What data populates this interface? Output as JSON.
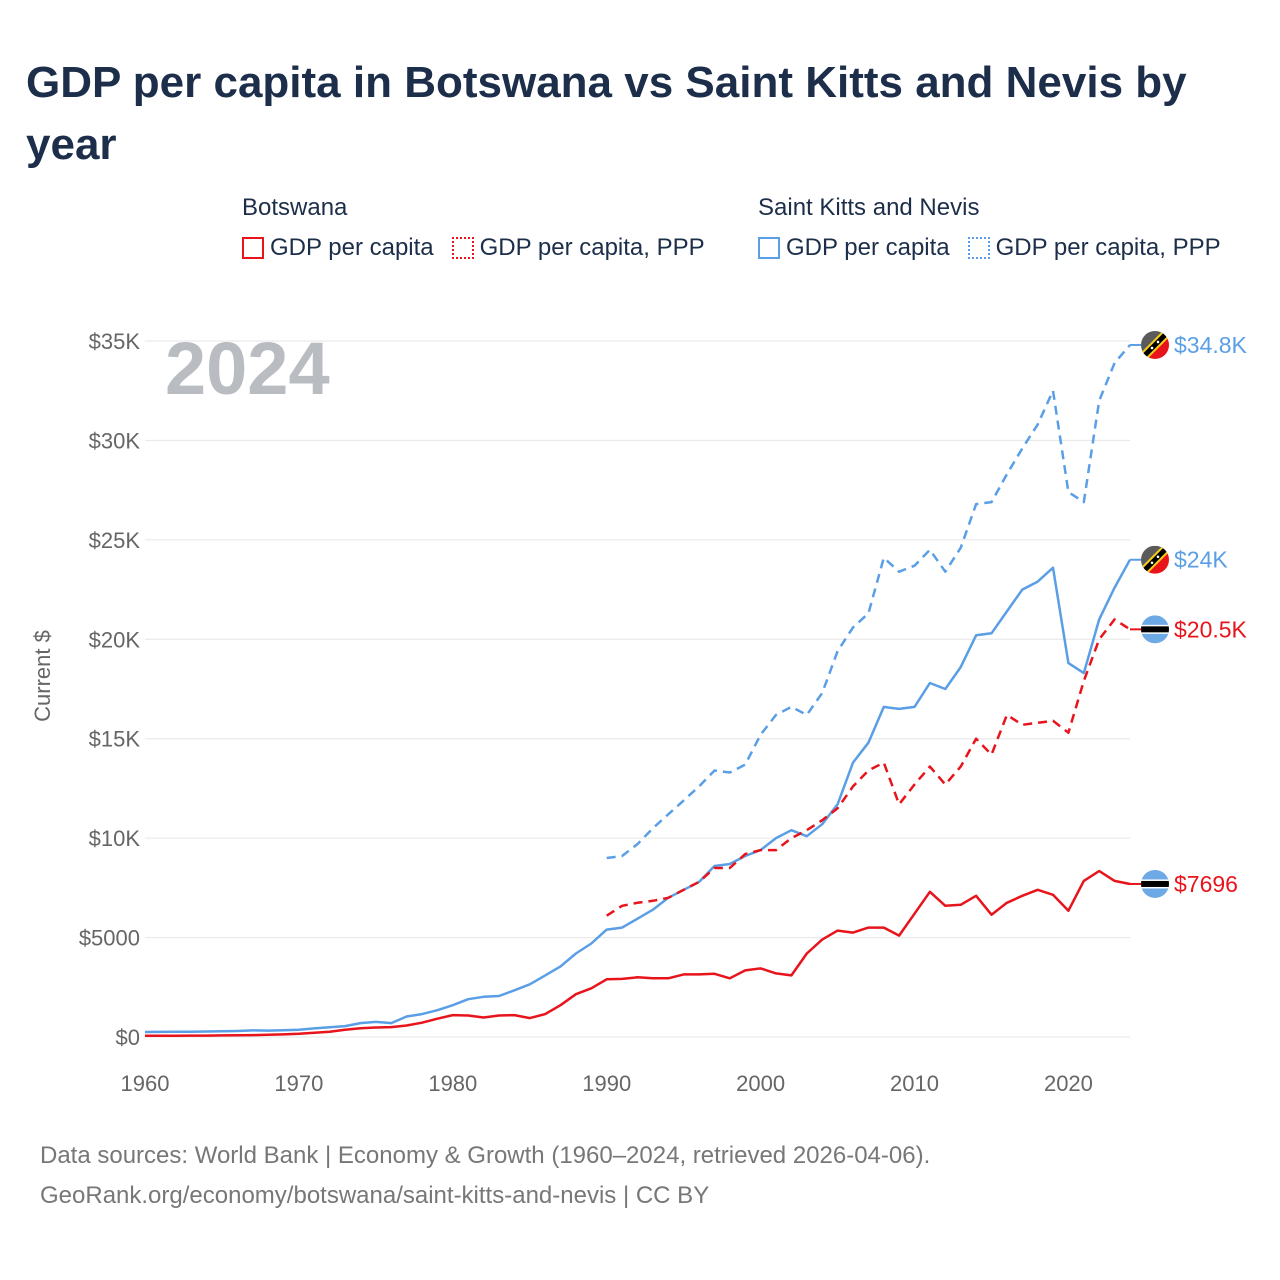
{
  "title": "GDP per capita in Botswana vs Saint Kitts and Nevis by year",
  "legend": {
    "groups": [
      {
        "name": "Botswana",
        "items": [
          "GDP per capita",
          "GDP per capita, PPP"
        ],
        "color": "#e8141c"
      },
      {
        "name": "Saint Kitts and Nevis",
        "items": [
          "GDP per capita",
          "GDP per capita, PPP"
        ],
        "color": "#5a9fe6"
      }
    ]
  },
  "footer": {
    "line1": "Data sources: World Bank | Economy & Growth (1960–2024, retrieved 2026-04-06).",
    "line2": "GeoRank.org/economy/botswana/saint-kitts-and-nevis | CC BY"
  },
  "chart_data": {
    "type": "line",
    "year_label": "2024",
    "ylabel": "Current $",
    "xlim": [
      1960,
      2024
    ],
    "ylim": [
      0,
      35000
    ],
    "x_ticks": [
      1960,
      1970,
      1980,
      1990,
      2000,
      2010,
      2020
    ],
    "x_tick_labels": [
      "1960",
      "1970",
      "1980",
      "1990",
      "2000",
      "2010",
      "2020"
    ],
    "y_ticks": [
      0,
      5000,
      10000,
      15000,
      20000,
      25000,
      30000,
      35000
    ],
    "y_tick_labels": [
      "$0",
      "$5000",
      "$10K",
      "$15K",
      "$20K",
      "$25K",
      "$30K",
      "$35K"
    ],
    "series": [
      {
        "name": "Saint Kitts and Nevis GDP per capita, PPP",
        "country": "Saint Kitts and Nevis",
        "color": "#5a9fe6",
        "dash": true,
        "end_label": "$34.8K",
        "x": [
          1990,
          1991,
          1992,
          1993,
          1994,
          1995,
          1996,
          1997,
          1998,
          1999,
          2000,
          2001,
          2002,
          2003,
          2004,
          2005,
          2006,
          2007,
          2008,
          2009,
          2010,
          2011,
          2012,
          2013,
          2014,
          2015,
          2016,
          2017,
          2018,
          2019,
          2020,
          2021,
          2022,
          2023,
          2024
        ],
        "values": [
          9000,
          9100,
          9700,
          10500,
          11200,
          11900,
          12600,
          13400,
          13300,
          13700,
          15200,
          16200,
          16600,
          16200,
          17300,
          19400,
          20600,
          21300,
          24100,
          23400,
          23700,
          24500,
          23400,
          24600,
          26800,
          26900,
          28300,
          29600,
          30800,
          32500,
          27400,
          26900,
          32000,
          33900,
          34800
        ]
      },
      {
        "name": "Saint Kitts and Nevis GDP per capita",
        "country": "Saint Kitts and Nevis",
        "color": "#5a9fe6",
        "dash": false,
        "end_label": "$24K",
        "x": [
          1960,
          1961,
          1962,
          1963,
          1964,
          1965,
          1966,
          1967,
          1968,
          1969,
          1970,
          1971,
          1972,
          1973,
          1974,
          1975,
          1976,
          1977,
          1978,
          1979,
          1980,
          1981,
          1982,
          1983,
          1984,
          1985,
          1986,
          1987,
          1988,
          1989,
          1990,
          1991,
          1992,
          1993,
          1994,
          1995,
          1996,
          1997,
          1998,
          1999,
          2000,
          2001,
          2002,
          2003,
          2004,
          2005,
          2006,
          2007,
          2008,
          2009,
          2010,
          2011,
          2012,
          2013,
          2014,
          2015,
          2016,
          2017,
          2018,
          2019,
          2020,
          2021,
          2022,
          2023,
          2024
        ],
        "values": [
          250,
          255,
          260,
          265,
          275,
          285,
          300,
          330,
          320,
          340,
          360,
          430,
          490,
          550,
          700,
          760,
          700,
          1030,
          1150,
          1350,
          1600,
          1900,
          2020,
          2060,
          2350,
          2650,
          3100,
          3550,
          4200,
          4700,
          5400,
          5500,
          5950,
          6400,
          7000,
          7400,
          7800,
          8600,
          8700,
          9100,
          9400,
          10000,
          10400,
          10100,
          10700,
          11700,
          13800,
          14800,
          16600,
          16500,
          16600,
          17800,
          17500,
          18600,
          20200,
          20300,
          21400,
          22500,
          22900,
          23600,
          18800,
          18300,
          21000,
          22600,
          24000
        ]
      },
      {
        "name": "Botswana GDP per capita, PPP",
        "country": "Botswana",
        "color": "#e8141c",
        "dash": true,
        "end_label": "$20.5K",
        "x": [
          1990,
          1991,
          1992,
          1993,
          1994,
          1995,
          1996,
          1997,
          1998,
          1999,
          2000,
          2001,
          2002,
          2003,
          2004,
          2005,
          2006,
          2007,
          2008,
          2009,
          2010,
          2011,
          2012,
          2013,
          2014,
          2015,
          2016,
          2017,
          2018,
          2019,
          2020,
          2021,
          2022,
          2023,
          2024
        ],
        "values": [
          6100,
          6600,
          6750,
          6850,
          7000,
          7400,
          7800,
          8500,
          8500,
          9200,
          9400,
          9400,
          10000,
          10400,
          10900,
          11500,
          12600,
          13400,
          13800,
          11700,
          12700,
          13600,
          12700,
          13600,
          15000,
          14200,
          16200,
          15700,
          15800,
          15900,
          15300,
          17900,
          20000,
          21000,
          20500
        ]
      },
      {
        "name": "Botswana GDP per capita",
        "country": "Botswana",
        "color": "#e8141c",
        "dash": false,
        "end_label": "$7696",
        "x": [
          1960,
          1961,
          1962,
          1963,
          1964,
          1965,
          1966,
          1967,
          1968,
          1969,
          1970,
          1971,
          1972,
          1973,
          1974,
          1975,
          1976,
          1977,
          1978,
          1979,
          1980,
          1981,
          1982,
          1983,
          1984,
          1985,
          1986,
          1987,
          1988,
          1989,
          1990,
          1991,
          1992,
          1993,
          1994,
          1995,
          1996,
          1997,
          1998,
          1999,
          2000,
          2001,
          2002,
          2003,
          2004,
          2005,
          2006,
          2007,
          2008,
          2009,
          2010,
          2011,
          2012,
          2013,
          2014,
          2015,
          2016,
          2017,
          2018,
          2019,
          2020,
          2021,
          2022,
          2023,
          2024
        ],
        "values": [
          60,
          62,
          65,
          68,
          72,
          78,
          85,
          95,
          110,
          130,
          160,
          210,
          260,
          360,
          440,
          480,
          500,
          580,
          720,
          920,
          1100,
          1080,
          980,
          1080,
          1100,
          950,
          1150,
          1600,
          2150,
          2450,
          2900,
          2920,
          3000,
          2950,
          2950,
          3150,
          3150,
          3180,
          2950,
          3350,
          3450,
          3200,
          3100,
          4200,
          4900,
          5350,
          5250,
          5500,
          5500,
          5100,
          6200,
          7300,
          6600,
          6650,
          7100,
          6150,
          6750,
          7100,
          7400,
          7150,
          6350,
          7850,
          8350,
          7850,
          7696
        ]
      }
    ]
  }
}
